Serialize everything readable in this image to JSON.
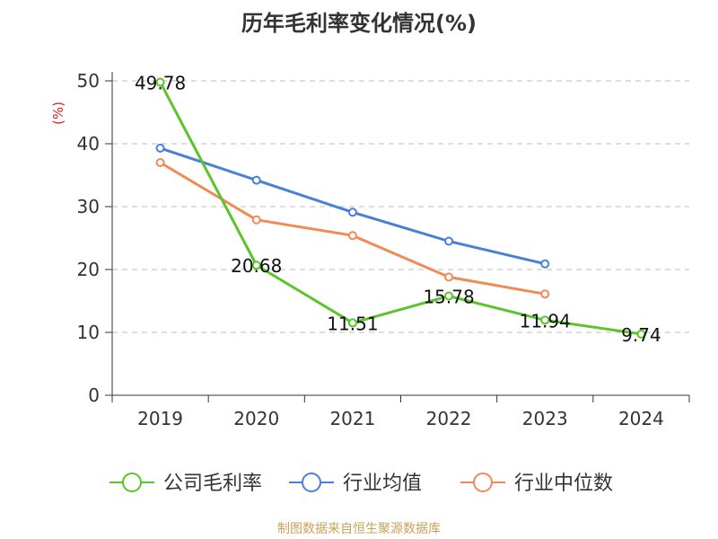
{
  "title": "历年毛利率变化情况(%)",
  "source_note": "制图数据来自恒生聚源数据库",
  "chart_data": {
    "type": "line",
    "title": "历年毛利率变化情况(%)",
    "ylabel": "(%)",
    "xlabel": "",
    "categories": [
      "2019",
      "2020",
      "2021",
      "2022",
      "2023",
      "2024"
    ],
    "yticks": [
      "0",
      "10",
      "20",
      "30",
      "40",
      "50"
    ],
    "ylim": [
      0,
      50
    ],
    "grid": "horizontal dashed",
    "legend_position": "bottom",
    "series": [
      {
        "name": "公司毛利率",
        "color": "#5ac42a",
        "values": [
          49.78,
          20.68,
          11.51,
          15.78,
          11.94,
          9.74
        ],
        "labels": [
          "49.78",
          "20.68",
          "11.51",
          "15.78",
          "11.94",
          "9.74"
        ]
      },
      {
        "name": "行业均值",
        "color": "#4a7fd8",
        "values": [
          39.3,
          34.2,
          29.1,
          24.5,
          20.9,
          null
        ]
      },
      {
        "name": "行业中位数",
        "color": "#f28a55",
        "values": [
          37.0,
          27.9,
          25.4,
          18.8,
          16.1,
          null
        ]
      }
    ]
  }
}
